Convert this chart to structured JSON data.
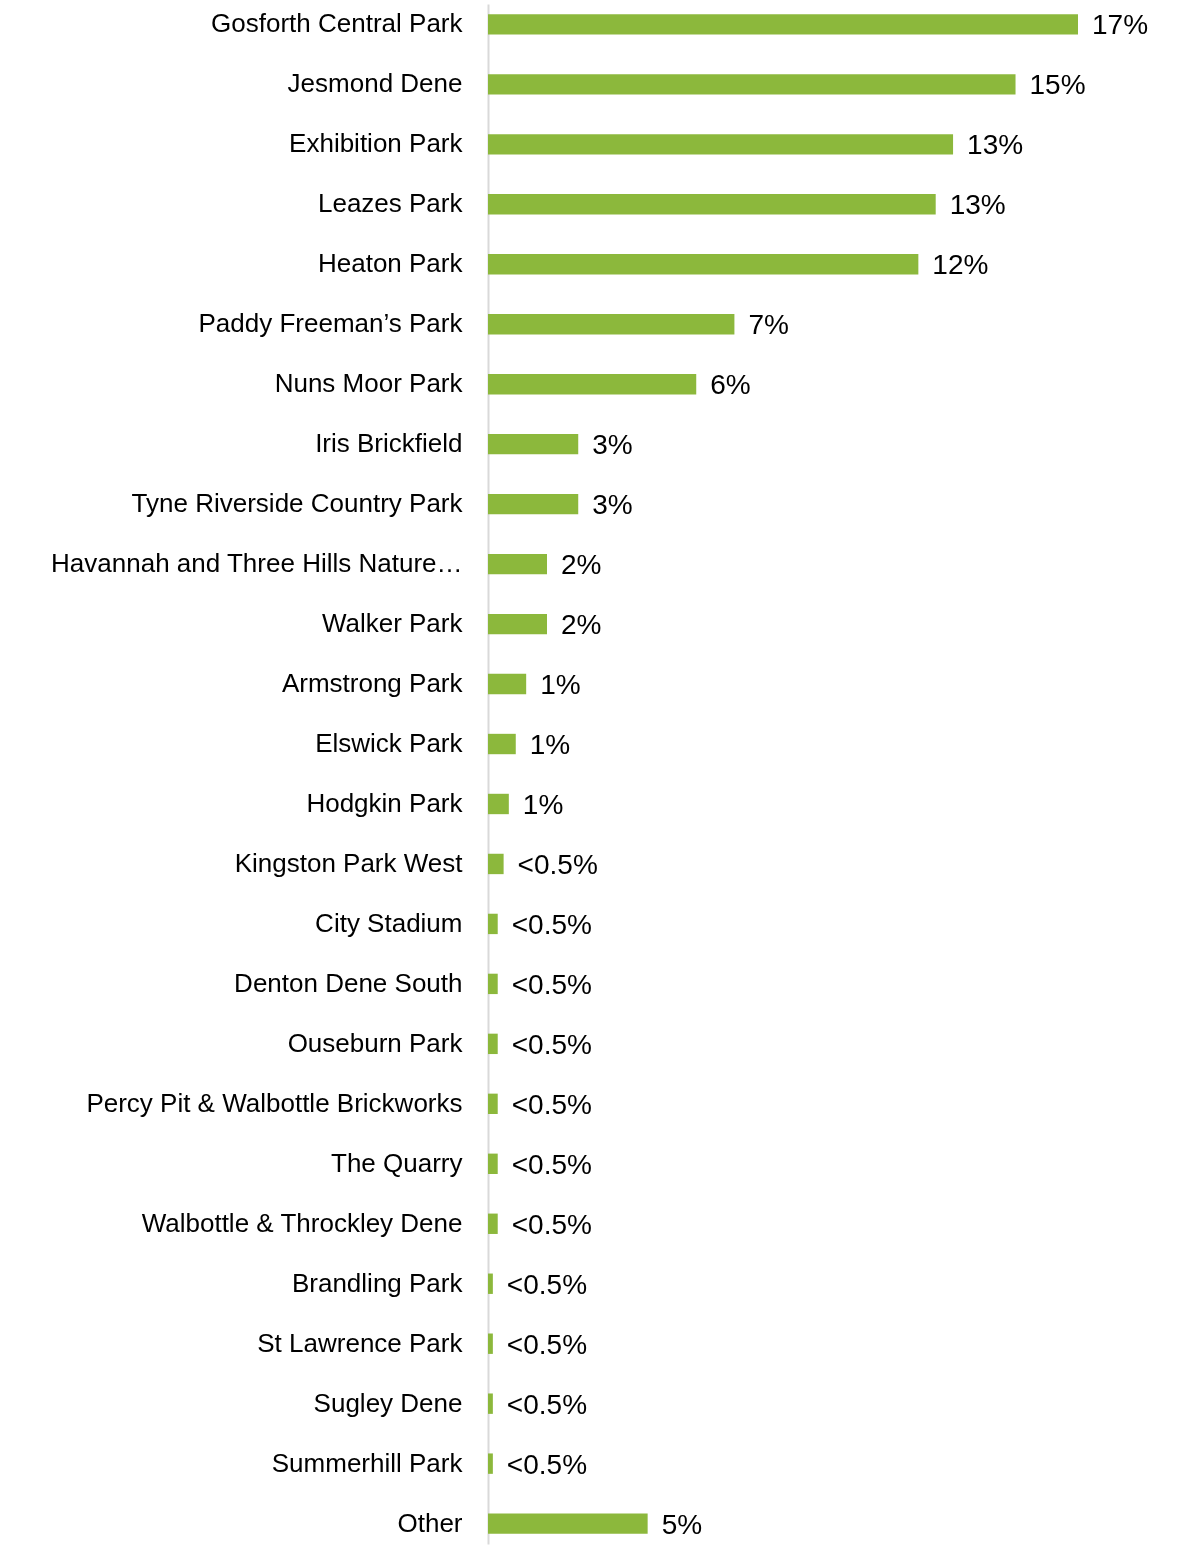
{
  "chart_data": {
    "type": "bar",
    "orientation": "horizontal",
    "color": "#8cb83c",
    "categories": [
      "Gosforth Central Park",
      "Jesmond Dene",
      "Exhibition Park",
      "Leazes Park",
      "Heaton Park",
      "Paddy Freeman’s Park",
      "Nuns Moor Park",
      "Iris Brickfield",
      "Tyne Riverside Country Park",
      "Havannah and Three Hills Nature…",
      "Walker Park",
      "Armstrong Park",
      "Elswick Park",
      "Hodgkin Park",
      "Kingston Park West",
      "City Stadium",
      "Denton Dene South",
      "Ouseburn Park",
      "Percy Pit & Walbottle Brickworks",
      "The Quarry",
      "Walbottle & Throckley Dene",
      "Brandling Park",
      "St Lawrence Park",
      "Sugley Dene",
      "Summerhill Park",
      "Other"
    ],
    "values": [
      17,
      15.2,
      13.4,
      12.9,
      12.4,
      7.1,
      6.0,
      2.6,
      2.6,
      1.7,
      1.7,
      1.1,
      0.8,
      0.6,
      0.45,
      0.28,
      0.28,
      0.28,
      0.28,
      0.28,
      0.28,
      0.14,
      0.14,
      0.14,
      0.14,
      4.6
    ],
    "value_labels": [
      "17%",
      "15%",
      "13%",
      "13%",
      "12%",
      "7%",
      "6%",
      "3%",
      "3%",
      "2%",
      "2%",
      "1%",
      "1%",
      "1%",
      "<0.5%",
      "<0.5%",
      "<0.5%",
      "<0.5%",
      "<0.5%",
      "<0.5%",
      "<0.5%",
      "<0.5%",
      "<0.5%",
      "<0.5%",
      "<0.5%",
      "5%"
    ]
  }
}
